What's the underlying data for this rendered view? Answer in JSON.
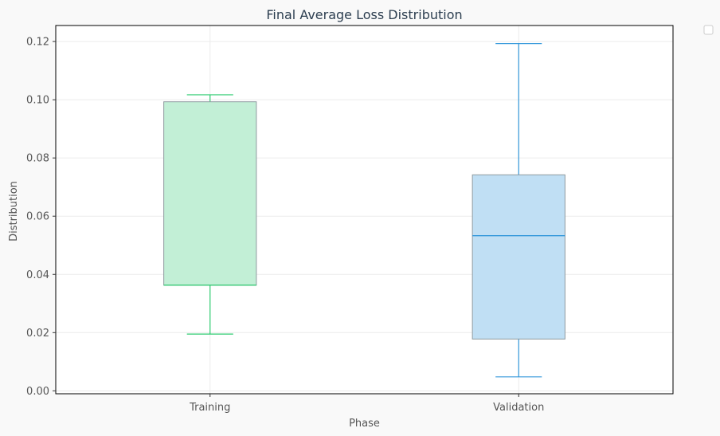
{
  "chart_data": {
    "type": "box",
    "title": "Final Average Loss Distribution",
    "xlabel": "Phase",
    "ylabel": "Distribution",
    "categories": [
      "Training",
      "Validation"
    ],
    "ylim": [
      -0.001,
      0.1255
    ],
    "yticks": [
      "0.00",
      "0.02",
      "0.04",
      "0.06",
      "0.08",
      "0.10",
      "0.12"
    ],
    "grid": true,
    "legend": "top-right (empty)",
    "boxes": [
      {
        "name": "Training",
        "whisker_low": 0.0195,
        "q1": 0.0363,
        "median": 0.0363,
        "q3": 0.0993,
        "whisker_high": 0.1017,
        "fill_color": "#c2efd6",
        "line_color": "#2ecc71"
      },
      {
        "name": "Validation",
        "whisker_low": 0.0048,
        "q1": 0.0178,
        "median": 0.0533,
        "q3": 0.0742,
        "whisker_high": 0.1193,
        "fill_color": "#c0dff4",
        "line_color": "#3498db"
      }
    ]
  },
  "colors": {
    "box_edge": "#8e9a9f",
    "grid": "#ececec",
    "axes": "#000000"
  }
}
